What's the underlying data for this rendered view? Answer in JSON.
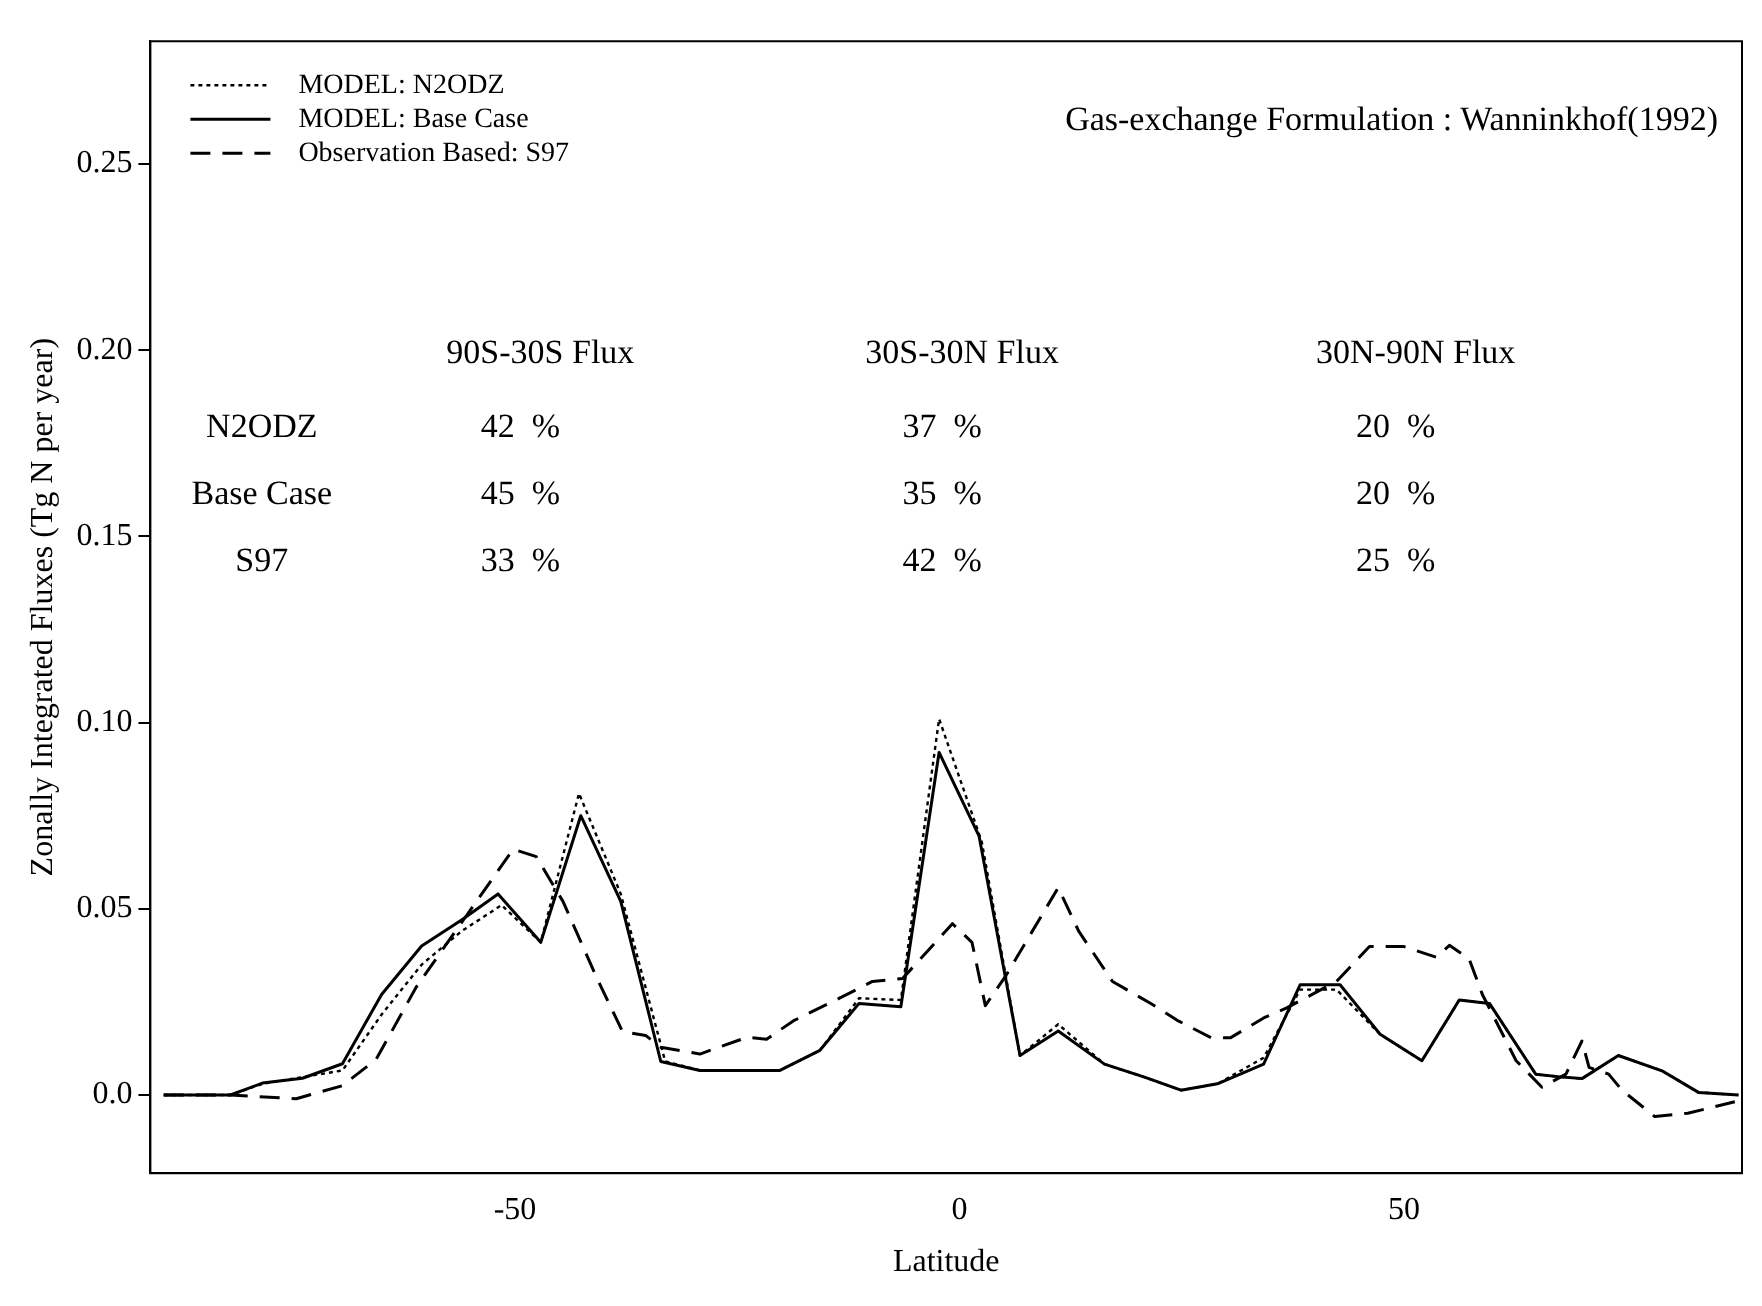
{
  "chart_data": {
    "type": "line",
    "xlabel": "Latitude",
    "ylabel": "Zonally Integrated Fluxes (Tg N per year)",
    "xlim": [
      -91,
      88
    ],
    "xticks": [
      -50,
      0,
      50
    ],
    "ylim": [
      -0.021,
      0.283
    ],
    "yticks": [
      {
        "value": 0,
        "label": "0.0"
      },
      0.05,
      {
        "value": 0.1,
        "label": "0.10"
      },
      0.15,
      {
        "value": 0.2,
        "label": "0.20"
      },
      0.25
    ],
    "grid": false,
    "legend": "top left",
    "marker": "none",
    "annotations": [
      "Gas-exchange Formulation : Wanninkhof(1992)",
      "90S-30S Flux",
      "30S-30N Flux",
      "30N-90N Flux",
      "N2ODZ",
      "42  %",
      "37  %",
      "20  %",
      "Base Case",
      "45  %",
      "35  %",
      "20  %",
      "S97",
      "33  %",
      "42  %",
      "25  %"
    ],
    "series": [
      {
        "name": "MODEL: N2ODZ",
        "color": "#000000",
        "line_style": "dotted",
        "x": [
          -89.5,
          -82,
          -78.4,
          -69.4,
          -65,
          -60.5,
          -56,
          -51.5,
          -47.1,
          -42.8,
          -38.1,
          -33.1,
          -29.2,
          -20.2,
          -15.7,
          -11.3,
          -6.6,
          -2.3,
          2.5,
          6.8,
          11.1,
          16.3,
          20.8,
          24.9,
          29,
          34.2,
          38.3,
          42.4,
          47.3,
          52,
          56.2,
          59.6,
          64.8,
          67.8,
          70,
          74.1,
          79,
          83.1,
          87.6
        ],
        "values": [
          0,
          0,
          0.003,
          0.0066,
          0.0216,
          0.035,
          0.044,
          0.051,
          0.041,
          0.081,
          0.054,
          0.009,
          0.0066,
          0.0066,
          0.012,
          0.026,
          0.0255,
          0.101,
          0.068,
          0.0106,
          0.019,
          0.0083,
          0.0048,
          0.0013,
          0.003,
          0.01,
          0.0283,
          0.0283,
          0.0163,
          0.0092,
          0.0255,
          0.0246,
          0.0056,
          0.0048,
          0.0044,
          0.0106,
          0.0065,
          0.0007,
          0
        ]
      },
      {
        "name": "MODEL: Base Case",
        "color": "#000000",
        "line_style": "solid",
        "x": [
          -89.5,
          -82,
          -78.4,
          -73.9,
          -69.4,
          -65,
          -60.5,
          -56,
          -51.9,
          -47.1,
          -42.6,
          -38.1,
          -33.6,
          -29.2,
          -20.2,
          -15.7,
          -11.3,
          -6.6,
          -2.3,
          2.2,
          6.8,
          11.1,
          16.3,
          20.8,
          24.9,
          29,
          34.2,
          38.3,
          42.8,
          47.3,
          52,
          56.2,
          59.6,
          64.8,
          67.8,
          70,
          74.1,
          79,
          83.1,
          87.6
        ],
        "values": [
          0,
          0,
          0.0032,
          0.0045,
          0.0084,
          0.027,
          0.04,
          0.047,
          0.054,
          0.041,
          0.075,
          0.052,
          0.009,
          0.0066,
          0.0066,
          0.012,
          0.0246,
          0.0237,
          0.092,
          0.0695,
          0.0106,
          0.0172,
          0.0083,
          0.0048,
          0.0013,
          0.003,
          0.0083,
          0.0296,
          0.0296,
          0.0163,
          0.0092,
          0.0255,
          0.0246,
          0.0056,
          0.0048,
          0.0044,
          0.0106,
          0.0065,
          0.0007,
          0
        ]
      },
      {
        "name": "Observation Based: S97",
        "color": "#000000",
        "line_style": "dashed",
        "x": [
          -89.5,
          -82,
          -74.6,
          -69.4,
          -65.6,
          -61.1,
          -55.8,
          -50.2,
          -47.6,
          -44.6,
          -40.9,
          -37.9,
          -35.3,
          -33.6,
          -29.2,
          -23.9,
          -21.7,
          -18.7,
          -13.5,
          -9.8,
          -6.4,
          -0.8,
          1.4,
          2.9,
          5.2,
          11.1,
          13.4,
          17.2,
          21.7,
          24.6,
          28.3,
          30.5,
          34.2,
          36.8,
          42.4,
          46.1,
          49.9,
          53.6,
          55.1,
          57.3,
          58.8,
          62.6,
          65.5,
          68.2,
          70,
          70.8,
          73,
          74.5,
          78.2,
          81.9,
          87.9
        ],
        "values": [
          0,
          0,
          -0.001,
          0.0025,
          0.0096,
          0.029,
          0.047,
          0.066,
          0.064,
          0.052,
          0.032,
          0.017,
          0.016,
          0.0128,
          0.011,
          0.0155,
          0.015,
          0.0199,
          0.026,
          0.0305,
          0.0313,
          0.046,
          0.041,
          0.024,
          0.032,
          0.0557,
          0.044,
          0.0305,
          0.0243,
          0.0199,
          0.0154,
          0.0154,
          0.0207,
          0.0234,
          0.0305,
          0.0399,
          0.0399,
          0.037,
          0.0402,
          0.0366,
          0.027,
          0.0092,
          0.0021,
          0.0056,
          0.0145,
          0.0074,
          0.0056,
          0.0013,
          -0.0058,
          -0.0049,
          -0.0014
        ]
      }
    ]
  }
}
